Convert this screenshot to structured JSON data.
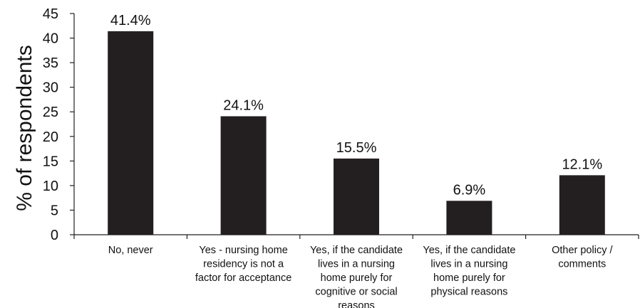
{
  "chart_data": {
    "type": "bar",
    "ylabel": "% of respondents",
    "xlabel": "",
    "ylim": [
      0,
      45
    ],
    "yticks": [
      0,
      5,
      10,
      15,
      20,
      25,
      30,
      35,
      40,
      45
    ],
    "grid": false,
    "bar_color": "#231f20",
    "categories": [
      [
        "No, never"
      ],
      [
        "Yes - nursing home",
        "residency is not a",
        "factor for acceptance"
      ],
      [
        "Yes, if the candidate",
        "lives in a nursing",
        "home purely for",
        "cognitive or social",
        "reasons"
      ],
      [
        "Yes, if the candidate",
        "lives in a nursing",
        "home purely for",
        "physical reasons"
      ],
      [
        "Other policy /",
        "comments"
      ]
    ],
    "values": [
      41.4,
      24.1,
      15.5,
      6.9,
      12.1
    ],
    "value_labels": [
      "41.4%",
      "24.1%",
      "15.5%",
      "6.9%",
      "12.1%"
    ]
  }
}
